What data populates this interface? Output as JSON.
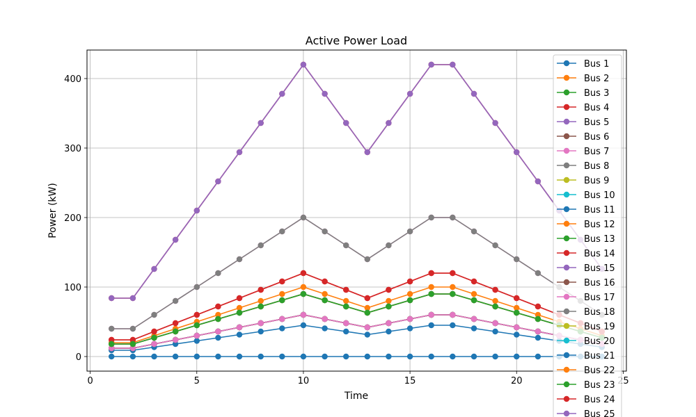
{
  "chart_data": {
    "type": "line",
    "title": "Active Power Load",
    "xlabel": "Time",
    "ylabel": "Power (kW)",
    "xlim": [
      -0.15,
      25.15
    ],
    "ylim": [
      -21,
      441
    ],
    "xticks": [
      0,
      5,
      10,
      15,
      20,
      25
    ],
    "yticks": [
      0,
      100,
      200,
      300,
      400
    ],
    "grid": true,
    "legend_position": "top-right",
    "x": [
      1,
      2,
      3,
      4,
      5,
      6,
      7,
      8,
      9,
      10,
      11,
      12,
      13,
      14,
      15,
      16,
      17,
      18,
      19,
      20,
      21,
      22,
      23,
      24
    ],
    "profile": [
      0.2,
      0.2,
      0.3,
      0.4,
      0.5,
      0.6,
      0.7,
      0.8,
      0.9,
      1.0,
      0.9,
      0.8,
      0.7,
      0.8,
      0.9,
      1.0,
      1.0,
      0.9,
      0.8,
      0.7,
      0.6,
      0.5,
      0.4,
      0.3
    ],
    "series": [
      {
        "name": "Bus 1",
        "color": "#1f77b4",
        "peak": 0
      },
      {
        "name": "Bus 2",
        "color": "#ff7f0e",
        "peak": 100
      },
      {
        "name": "Bus 3",
        "color": "#2ca02c",
        "peak": 90
      },
      {
        "name": "Bus 4",
        "color": "#d62728",
        "peak": 120
      },
      {
        "name": "Bus 5",
        "color": "#9467bd",
        "peak": 60
      },
      {
        "name": "Bus 6",
        "color": "#8c564b",
        "peak": 60
      },
      {
        "name": "Bus 7",
        "color": "#e377c2",
        "peak": 200
      },
      {
        "name": "Bus 8",
        "color": "#7f7f7f",
        "peak": 200
      },
      {
        "name": "Bus 9",
        "color": "#bcbd22",
        "peak": 60
      },
      {
        "name": "Bus 10",
        "color": "#17becf",
        "peak": 60
      },
      {
        "name": "Bus 11",
        "color": "#1f77b4",
        "peak": 45
      },
      {
        "name": "Bus 12",
        "color": "#ff7f0e",
        "peak": 60
      },
      {
        "name": "Bus 13",
        "color": "#2ca02c",
        "peak": 60
      },
      {
        "name": "Bus 14",
        "color": "#d62728",
        "peak": 120
      },
      {
        "name": "Bus 15",
        "color": "#9467bd",
        "peak": 60
      },
      {
        "name": "Bus 16",
        "color": "#8c564b",
        "peak": 60
      },
      {
        "name": "Bus 17",
        "color": "#e377c2",
        "peak": 60
      },
      {
        "name": "Bus 18",
        "color": "#7f7f7f",
        "peak": 90
      },
      {
        "name": "Bus 19",
        "color": "#bcbd22",
        "peak": 90
      },
      {
        "name": "Bus 20",
        "color": "#17becf",
        "peak": 90
      },
      {
        "name": "Bus 21",
        "color": "#1f77b4",
        "peak": 90
      },
      {
        "name": "Bus 22",
        "color": "#ff7f0e",
        "peak": 90
      },
      {
        "name": "Bus 23",
        "color": "#2ca02c",
        "peak": 90
      },
      {
        "name": "Bus 24",
        "color": "#d62728",
        "peak": 420
      },
      {
        "name": "Bus 25",
        "color": "#9467bd",
        "peak": 420
      }
    ]
  }
}
